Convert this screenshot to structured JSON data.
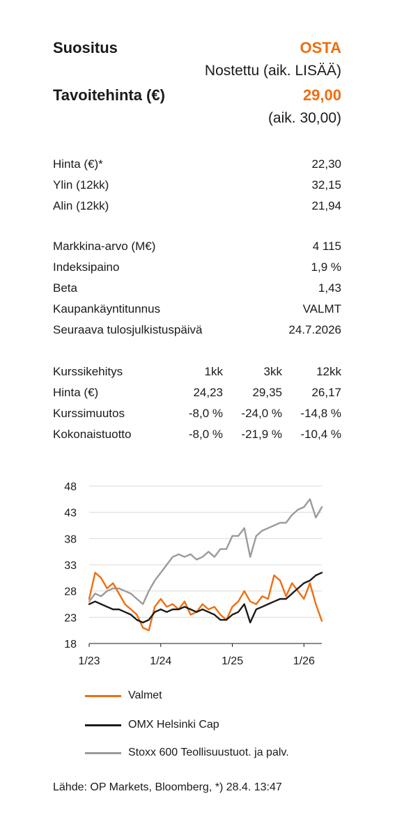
{
  "recommendation": {
    "label": "Suositus",
    "value": "OSTA",
    "change_note": "Nostettu (aik. LISÄÄ)"
  },
  "target_price": {
    "label": "Tavoitehinta (€)",
    "value": "29,00",
    "previous": "(aik. 30,00)"
  },
  "price_stats": [
    {
      "label": "Hinta (€)*",
      "value": "22,30"
    },
    {
      "label": "Ylin (12kk)",
      "value": "32,15"
    },
    {
      "label": "Alin (12kk)",
      "value": "21,94"
    }
  ],
  "company_stats": [
    {
      "label": "Markkina-arvo (M€)",
      "value": "4 115"
    },
    {
      "label": "Indeksipaino",
      "value": "1,9 %"
    },
    {
      "label": "Beta",
      "value": "1,43"
    },
    {
      "label": "Kaupankäyntitunnus",
      "value": "VALMT"
    },
    {
      "label": "Seuraava tulosjulkistuspäivä",
      "value": "24.7.2026"
    }
  ],
  "performance": {
    "header": [
      "Kurssikehitys",
      "1kk",
      "3kk",
      "12kk"
    ],
    "rows": [
      [
        "Hinta (€)",
        "24,23",
        "29,35",
        "26,17"
      ],
      [
        "Kurssimuutos",
        "-8,0 %",
        "-24,0 %",
        "-14,8 %"
      ],
      [
        "Kokonaistuotto",
        "-8,0 %",
        "-21,9 %",
        "-10,4 %"
      ]
    ]
  },
  "chart_data": {
    "type": "line",
    "title": "",
    "xlabel": "",
    "ylabel": "",
    "ylim": [
      18,
      48
    ],
    "yticks": [
      48,
      43,
      38,
      33,
      28,
      23,
      18
    ],
    "xlim": [
      "2023-01",
      "2026-04"
    ],
    "xticks": [
      "1/23",
      "1/24",
      "1/25",
      "1/26"
    ],
    "grid": true,
    "legend_position": "bottom",
    "series": [
      {
        "name": "Valmet",
        "color": "#f06d0f",
        "x": [
          "2023-01",
          "2023-02",
          "2023-03",
          "2023-04",
          "2023-05",
          "2023-06",
          "2023-07",
          "2023-08",
          "2023-09",
          "2023-10",
          "2023-11",
          "2023-12",
          "2024-01",
          "2024-02",
          "2024-03",
          "2024-04",
          "2024-05",
          "2024-06",
          "2024-07",
          "2024-08",
          "2024-09",
          "2024-10",
          "2024-11",
          "2024-12",
          "2025-01",
          "2025-02",
          "2025-03",
          "2025-04",
          "2025-05",
          "2025-06",
          "2025-07",
          "2025-08",
          "2025-09",
          "2025-10",
          "2025-11",
          "2025-12",
          "2026-01",
          "2026-02",
          "2026-03",
          "2026-04"
        ],
        "values": [
          26.5,
          31.5,
          30.5,
          28.5,
          29.5,
          27.5,
          25.5,
          24.5,
          23.5,
          21.0,
          20.5,
          25.0,
          26.5,
          25.0,
          25.5,
          24.5,
          26.0,
          23.5,
          24.0,
          25.5,
          24.5,
          25.0,
          23.5,
          22.5,
          25.0,
          26.0,
          28.0,
          26.0,
          25.5,
          27.0,
          26.5,
          31.0,
          30.0,
          27.0,
          29.5,
          28.0,
          26.5,
          29.5,
          25.5,
          22.3
        ]
      },
      {
        "name": "OMX Helsinki Cap",
        "color": "#1a1a1a",
        "x": [
          "2023-01",
          "2023-02",
          "2023-03",
          "2023-04",
          "2023-05",
          "2023-06",
          "2023-07",
          "2023-08",
          "2023-09",
          "2023-10",
          "2023-11",
          "2023-12",
          "2024-01",
          "2024-02",
          "2024-03",
          "2024-04",
          "2024-05",
          "2024-06",
          "2024-07",
          "2024-08",
          "2024-09",
          "2024-10",
          "2024-11",
          "2024-12",
          "2025-01",
          "2025-02",
          "2025-03",
          "2025-04",
          "2025-05",
          "2025-06",
          "2025-07",
          "2025-08",
          "2025-09",
          "2025-10",
          "2025-11",
          "2025-12",
          "2026-01",
          "2026-02",
          "2026-03",
          "2026-04"
        ],
        "values": [
          25.5,
          26.0,
          25.5,
          25.0,
          24.5,
          24.5,
          24.0,
          23.5,
          22.5,
          22.0,
          22.5,
          24.0,
          24.5,
          24.0,
          24.5,
          24.5,
          25.0,
          24.5,
          24.0,
          24.5,
          24.0,
          23.5,
          22.5,
          22.5,
          23.5,
          24.0,
          25.5,
          22.0,
          24.5,
          25.0,
          25.5,
          26.0,
          26.5,
          26.5,
          27.5,
          28.5,
          29.5,
          30.0,
          31.0,
          31.5
        ]
      },
      {
        "name": "Stoxx 600 Teollisuustuot. ja palv.",
        "color": "#9a9a9a",
        "x": [
          "2023-01",
          "2023-02",
          "2023-03",
          "2023-04",
          "2023-05",
          "2023-06",
          "2023-07",
          "2023-08",
          "2023-09",
          "2023-10",
          "2023-11",
          "2023-12",
          "2024-01",
          "2024-02",
          "2024-03",
          "2024-04",
          "2024-05",
          "2024-06",
          "2024-07",
          "2024-08",
          "2024-09",
          "2024-10",
          "2024-11",
          "2024-12",
          "2025-01",
          "2025-02",
          "2025-03",
          "2025-04",
          "2025-05",
          "2025-06",
          "2025-07",
          "2025-08",
          "2025-09",
          "2025-10",
          "2025-11",
          "2025-12",
          "2026-01",
          "2026-02",
          "2026-03",
          "2026-04"
        ],
        "values": [
          26.0,
          27.5,
          27.0,
          28.0,
          28.5,
          28.5,
          28.0,
          27.5,
          26.5,
          25.5,
          28.0,
          30.0,
          31.5,
          33.0,
          34.5,
          35.0,
          34.5,
          35.0,
          34.0,
          34.5,
          35.5,
          34.5,
          36.0,
          36.0,
          38.5,
          38.5,
          40.0,
          34.5,
          38.5,
          39.5,
          40.0,
          40.5,
          41.0,
          41.0,
          42.5,
          43.5,
          44.0,
          45.5,
          42.0,
          44.0
        ]
      }
    ]
  },
  "source_note": "Lähde: OP Markets, Bloomberg, *) 28.4. 13:47"
}
